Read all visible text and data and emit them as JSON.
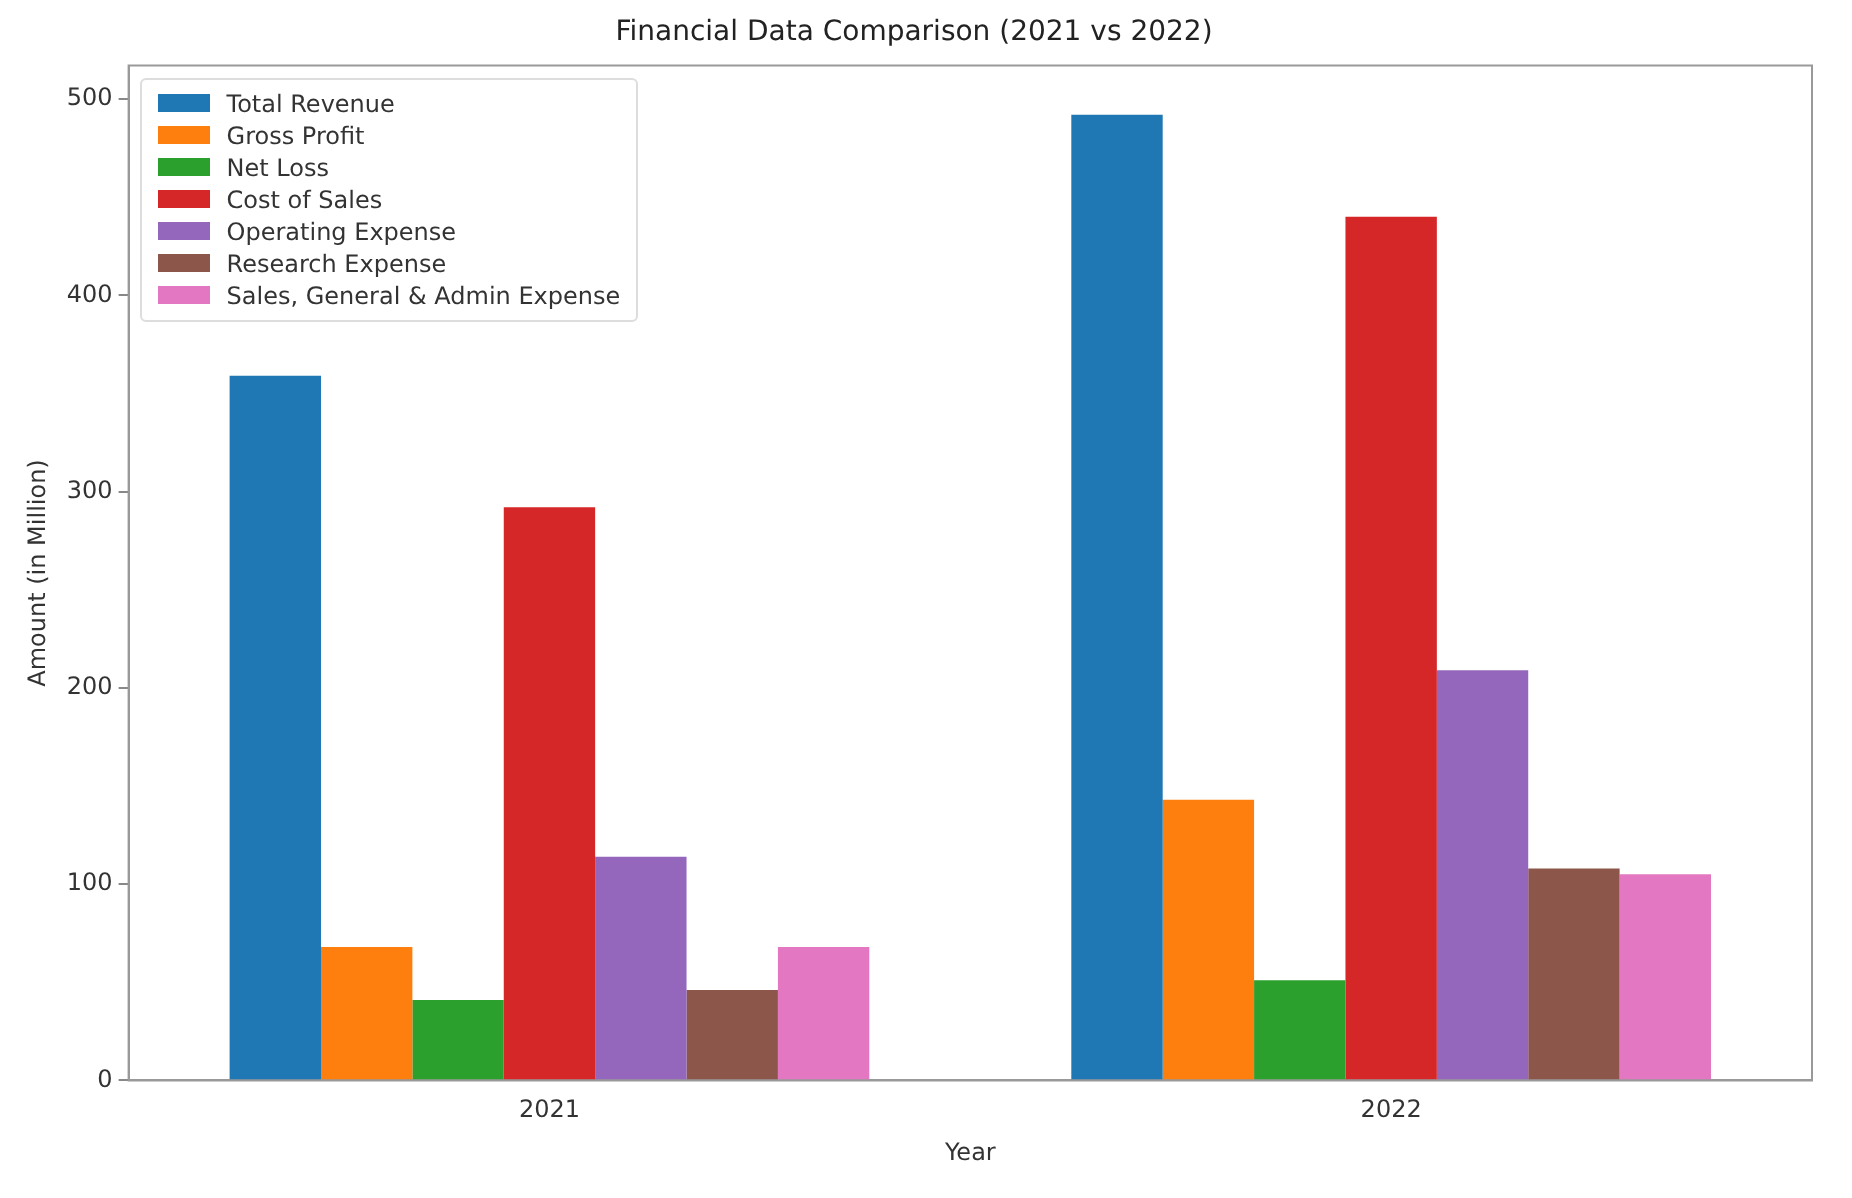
{
  "chart_data": {
    "type": "bar",
    "title": "Financial Data Comparison (2021 vs 2022)",
    "xlabel": "Year",
    "ylabel": "Amount (in Million)",
    "categories": [
      "2021",
      "2022"
    ],
    "series": [
      {
        "name": "Total Revenue",
        "color": "#1f77b4",
        "values": [
          359,
          492
        ]
      },
      {
        "name": "Gross Profit",
        "color": "#ff7f0e",
        "values": [
          68,
          143
        ]
      },
      {
        "name": "Net Loss",
        "color": "#2ca02c",
        "values": [
          41,
          51
        ]
      },
      {
        "name": "Cost of Sales",
        "color": "#d62728",
        "values": [
          292,
          440
        ]
      },
      {
        "name": "Operating Expense",
        "color": "#9467bd",
        "values": [
          114,
          209
        ]
      },
      {
        "name": "Research Expense",
        "color": "#8c564b",
        "values": [
          46,
          108
        ]
      },
      {
        "name": "Sales, General & Admin Expense",
        "color": "#e377c2",
        "values": [
          68,
          105
        ]
      }
    ],
    "ylim": [
      0,
      517
    ],
    "yticks": [
      0,
      100,
      200,
      300,
      400,
      500
    ],
    "grid": false,
    "legend": "top left"
  }
}
